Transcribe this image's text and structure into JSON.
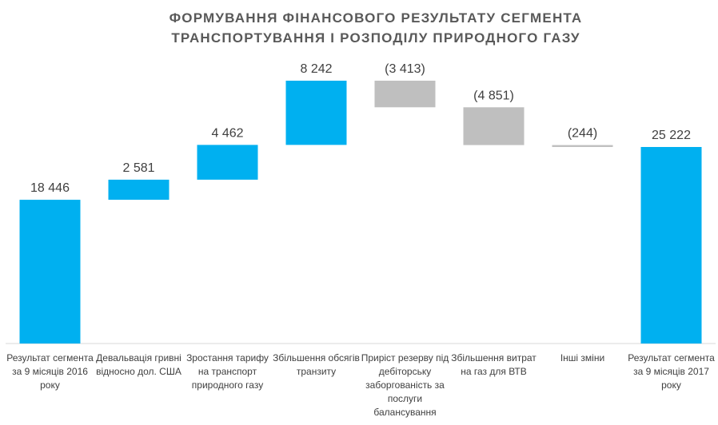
{
  "chart_data": {
    "type": "waterfall",
    "title": "ФОРМУВАННЯ ФІНАНСОВОГО РЕЗУЛЬТАТУ СЕГМЕНТА ТРАНСПОРТУВАННЯ І РОЗПОДІЛУ ПРИРОДНОГО ГАЗУ",
    "categories": [
      "Результат сегмента за 9 місяців 2016 року",
      "Девальвація гривні відносно дол. США",
      "Зростання тарифу на транспорт природного газу",
      "Збільшення обсягів транзиту",
      "Приріст резерву під дебіторську заборгованість за послуги балансування",
      "Збільшення витрат на газ для ВТВ",
      "Інші зміни",
      "Результат сегмента за 9 місяців 2017 року"
    ],
    "values": [
      18446,
      2581,
      4462,
      8242,
      -3413,
      -4851,
      -244,
      25222
    ],
    "value_labels": [
      "18 446",
      "2 581",
      "4 462",
      "8 242",
      "(3 413)",
      "(4 851)",
      "(244)",
      "25 222"
    ],
    "measure": [
      "absolute",
      "relative",
      "relative",
      "relative",
      "relative",
      "relative",
      "relative",
      "absolute"
    ],
    "colors": {
      "increase": "#00b0f0",
      "decrease": "#bfbfbf",
      "total": "#00b0f0"
    }
  }
}
